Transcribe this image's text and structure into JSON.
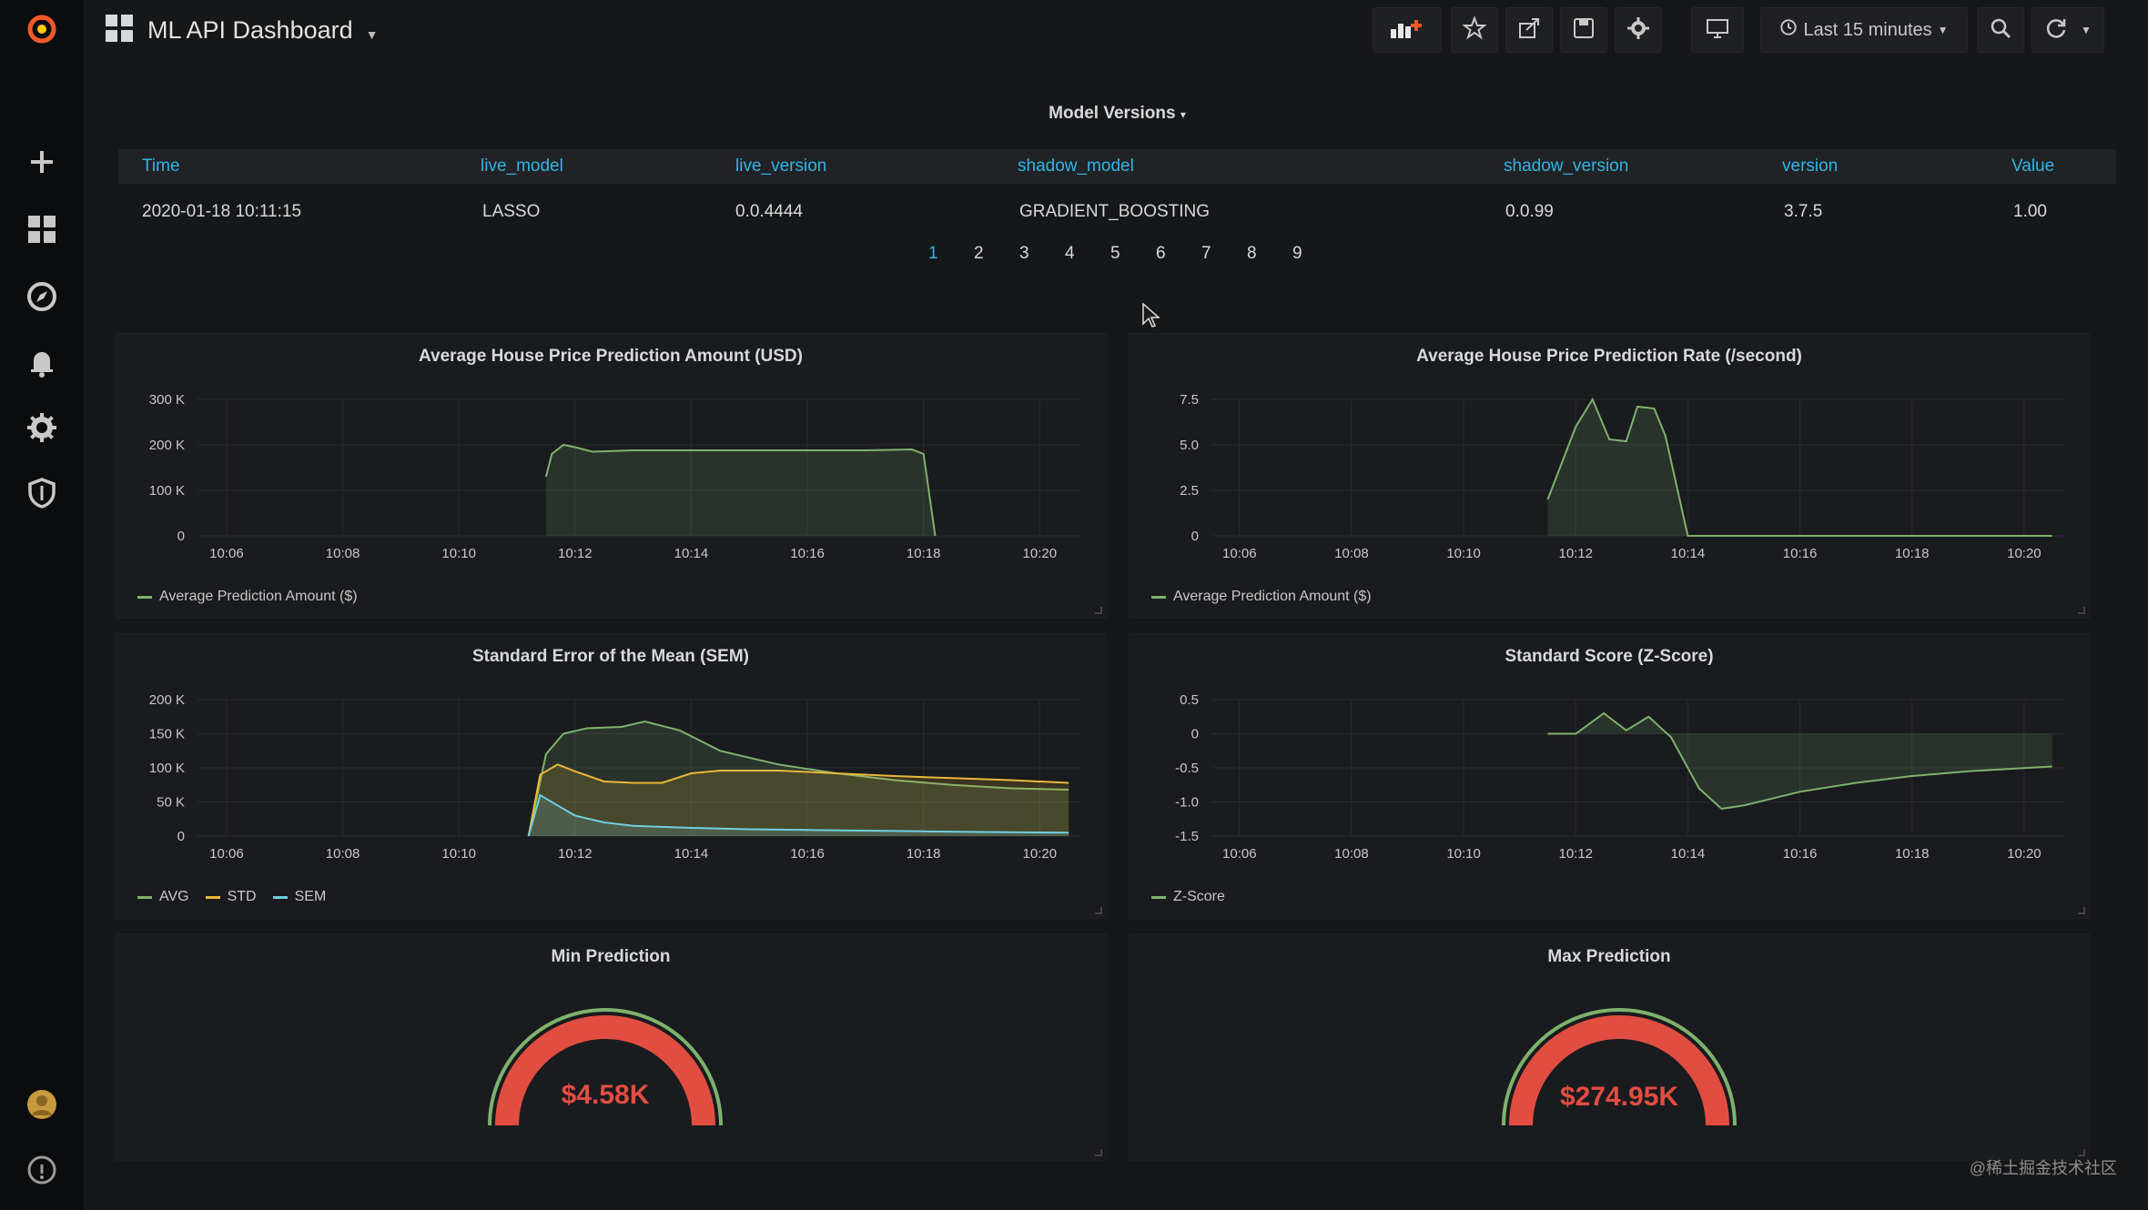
{
  "nav": {
    "title": "ML API Dashboard",
    "time_range": "Last 15 minutes"
  },
  "icons": {
    "logo": "grafana-logo-icon",
    "add": "plus-icon",
    "dashboards": "dashboards-grid-icon",
    "explore": "compass-icon",
    "alerting": "bell-icon",
    "config": "gear-icon",
    "shield": "shield-icon",
    "avatar": "user-avatar-icon",
    "help": "help-icon"
  },
  "colors": {
    "accent": "#33b5e5",
    "green_series": "#7eb26d",
    "yellow_series": "#eab839",
    "blue_series": "#6ed0e0",
    "gauge_red": "#e24d42"
  },
  "table": {
    "title": "Model Versions",
    "columns": [
      "Time",
      "live_model",
      "live_version",
      "shadow_model",
      "shadow_version",
      "version",
      "Value"
    ],
    "row": [
      "2020-01-18 10:11:15",
      "LASSO",
      "0.0.4444",
      "GRADIENT_BOOSTING",
      "0.0.99",
      "3.7.5",
      "1.00"
    ],
    "pages": [
      "1",
      "2",
      "3",
      "4",
      "5",
      "6",
      "7",
      "8",
      "9"
    ]
  },
  "panels": {
    "p1": {
      "title": "Average House Price Prediction Amount (USD)",
      "legend": [
        "Average Prediction Amount ($)"
      ]
    },
    "p2": {
      "title": "Average House Price Prediction Rate (/second)",
      "legend": [
        "Average Prediction Amount ($)"
      ]
    },
    "p3": {
      "title": "Standard Error of the Mean (SEM)",
      "legend": [
        "AVG",
        "STD",
        "SEM"
      ]
    },
    "p4": {
      "title": "Standard Score (Z-Score)",
      "legend": [
        "Z-Score"
      ]
    },
    "p5": {
      "title": "Min Prediction",
      "value": "$4.58K"
    },
    "p6": {
      "title": "Max Prediction",
      "value": "$274.95K"
    }
  },
  "watermark": "@稀土掘金技术社区",
  "chart_data": [
    {
      "type": "area",
      "title": "Average House Price Prediction Amount (USD)",
      "x_ticks": [
        "10:06",
        "10:08",
        "10:10",
        "10:12",
        "10:14",
        "10:16",
        "10:18",
        "10:20"
      ],
      "y_ticks": [
        "0",
        "100 K",
        "200 K",
        "300 K"
      ],
      "ylim": [
        0,
        300000
      ],
      "series": [
        {
          "name": "Average Prediction Amount ($)",
          "x": [
            11.5,
            11.6,
            11.8,
            12.0,
            12.3,
            13.0,
            14.0,
            15.0,
            16.0,
            17.0,
            17.8,
            18.0,
            18.2
          ],
          "values": [
            130000,
            180000,
            200000,
            195000,
            185000,
            188000,
            188000,
            188000,
            188000,
            188000,
            190000,
            180000,
            0
          ]
        }
      ]
    },
    {
      "type": "area",
      "title": "Average House Price Prediction Rate (/second)",
      "x_ticks": [
        "10:06",
        "10:08",
        "10:10",
        "10:12",
        "10:14",
        "10:16",
        "10:18",
        "10:20"
      ],
      "y_ticks": [
        "0",
        "2.5",
        "5.0",
        "7.5"
      ],
      "ylim": [
        0,
        7.5
      ],
      "series": [
        {
          "name": "Average Prediction Amount ($)",
          "x": [
            11.5,
            12.0,
            12.3,
            12.6,
            12.9,
            13.1,
            13.4,
            13.6,
            14.0,
            14.3,
            16.0,
            18.0,
            20.5
          ],
          "values": [
            2.0,
            6.0,
            7.5,
            5.3,
            5.2,
            7.1,
            7.0,
            5.5,
            0.0,
            0.0,
            0.0,
            0.0,
            0.0
          ]
        }
      ]
    },
    {
      "type": "area",
      "title": "Standard Error of the Mean (SEM)",
      "x_ticks": [
        "10:06",
        "10:08",
        "10:10",
        "10:12",
        "10:14",
        "10:16",
        "10:18",
        "10:20"
      ],
      "y_ticks": [
        "0",
        "50 K",
        "100 K",
        "150 K",
        "200 K"
      ],
      "ylim": [
        0,
        200000
      ],
      "series": [
        {
          "name": "AVG",
          "x": [
            11.2,
            11.5,
            11.8,
            12.2,
            12.8,
            13.2,
            13.8,
            14.5,
            15.5,
            16.5,
            17.5,
            18.5,
            19.5,
            20.5
          ],
          "values": [
            0,
            120000,
            150000,
            158000,
            160000,
            168000,
            155000,
            125000,
            105000,
            92000,
            82000,
            75000,
            70000,
            68000
          ]
        },
        {
          "name": "STD",
          "x": [
            11.2,
            11.4,
            11.7,
            12.0,
            12.5,
            13.0,
            13.5,
            14.0,
            14.5,
            15.5,
            16.5,
            17.5,
            18.5,
            19.5,
            20.5
          ],
          "values": [
            0,
            90000,
            105000,
            95000,
            80000,
            78000,
            78000,
            92000,
            96000,
            96000,
            92000,
            88000,
            85000,
            82000,
            78000
          ]
        },
        {
          "name": "SEM",
          "x": [
            11.2,
            11.4,
            11.7,
            12.0,
            12.5,
            13.0,
            14.0,
            15.0,
            16.0,
            17.0,
            18.0,
            19.0,
            20.5
          ],
          "values": [
            0,
            60000,
            45000,
            30000,
            20000,
            15000,
            12000,
            10000,
            9000,
            8000,
            7000,
            6000,
            5000
          ]
        }
      ]
    },
    {
      "type": "area",
      "title": "Standard Score (Z-Score)",
      "x_ticks": [
        "10:06",
        "10:08",
        "10:10",
        "10:12",
        "10:14",
        "10:16",
        "10:18",
        "10:20"
      ],
      "y_ticks": [
        "-1.5",
        "-1.0",
        "-0.5",
        "0",
        "0.5"
      ],
      "ylim": [
        -1.5,
        0.5
      ],
      "series": [
        {
          "name": "Z-Score",
          "x": [
            11.5,
            12.0,
            12.5,
            12.9,
            13.3,
            13.7,
            14.2,
            14.6,
            15.0,
            16.0,
            17.0,
            18.0,
            19.0,
            20.5
          ],
          "values": [
            0.0,
            0.0,
            0.3,
            0.05,
            0.25,
            -0.05,
            -0.8,
            -1.1,
            -1.05,
            -0.85,
            -0.72,
            -0.62,
            -0.55,
            -0.48
          ]
        }
      ]
    }
  ]
}
